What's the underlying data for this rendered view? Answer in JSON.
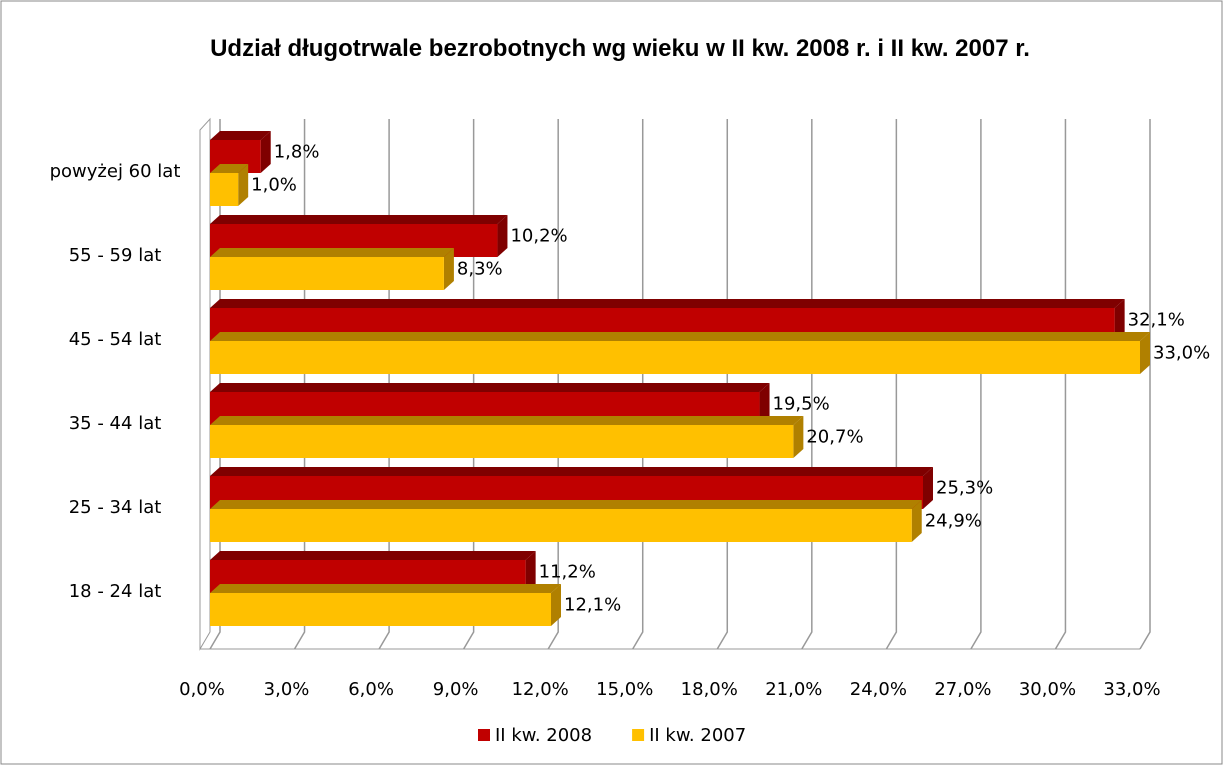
{
  "chart_data": {
    "type": "bar",
    "orientation": "horizontal",
    "three_d": true,
    "title": "Udział długotrwale bezrobotnych  wg wieku w II kw. 2008 r. i II kw. 2007 r.",
    "categories": [
      "powyżej 60 lat",
      "55 - 59 lat",
      "45 - 54 lat",
      "35 - 44 lat",
      "25 - 34 lat",
      "18 - 24 lat"
    ],
    "series": [
      {
        "name": "II kw. 2008",
        "color": "#c00000",
        "side_color": "#7f0000",
        "values": [
          1.8,
          10.2,
          32.1,
          19.5,
          25.3,
          11.2
        ],
        "value_labels": [
          "1,8%",
          "10,2%",
          "32,1%",
          "19,5%",
          "25,3%",
          "11,2%"
        ]
      },
      {
        "name": "II kw. 2007",
        "color": "#ffc000",
        "side_color": "#b08000",
        "values": [
          1.0,
          8.3,
          33.0,
          20.7,
          24.9,
          12.1
        ],
        "value_labels": [
          "1,0%",
          "8,3%",
          "33,0%",
          "20,7%",
          "24,9%",
          "12,1%"
        ]
      }
    ],
    "xlim": [
      0,
      33
    ],
    "xticks": [
      {
        "value": 0,
        "label": "0,0%"
      },
      {
        "value": 3,
        "label": "3,0%"
      },
      {
        "value": 6,
        "label": "6,0%"
      },
      {
        "value": 9,
        "label": "9,0%"
      },
      {
        "value": 12,
        "label": "12,0%"
      },
      {
        "value": 15,
        "label": "15,0%"
      },
      {
        "value": 18,
        "label": "18,0%"
      },
      {
        "value": 21,
        "label": "21,0%"
      },
      {
        "value": 24,
        "label": "24,0%"
      },
      {
        "value": 27,
        "label": "27,0%"
      },
      {
        "value": 30,
        "label": "30,0%"
      },
      {
        "value": 33,
        "label": "33,0%"
      }
    ],
    "grid": true,
    "legend": "bottom"
  }
}
